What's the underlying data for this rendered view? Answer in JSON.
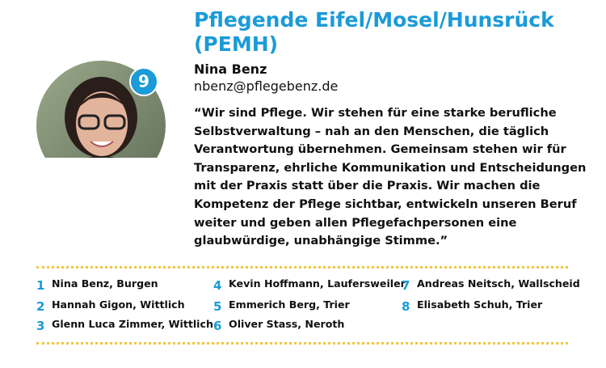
{
  "title_lines": [
    "Pflegende Eifel/Mosel/Hunsrück",
    "(PEMH)"
  ],
  "badge": 9,
  "name": "Nina Benz",
  "email": "nbenz@pflegebenz.de",
  "quote_lines": [
    "“Wir sind Pflege. Wir stehen für eine starke berufliche",
    "Selbstverwaltung – nah an den Menschen, die täglich",
    "Verantwortung übernehmen. Gemeinsam stehen wir für",
    "Transparenz, ehrliche Kommunikation und Entscheidungen",
    "mit der Praxis statt über die Praxis. Wir machen die",
    "Kompetenz der Pflege sichtbar, entwickeln unseren Beruf",
    "weiter und geben allen Pflegefachpersonen eine",
    "glaubwürdige, unabhängige Stimme.”"
  ],
  "list": [
    {
      "number": 1,
      "text": "Nina Benz, Burgen"
    },
    {
      "number": 2,
      "text": "Hannah Gigon, Wittlich"
    },
    {
      "number": 3,
      "text": "Glenn Luca Zimmer, Wittlich"
    },
    {
      "number": 4,
      "text": "Kevin Hoffmann, Laufersweiler"
    },
    {
      "number": 5,
      "text": "Emmerich Berg, Trier"
    },
    {
      "number": 6,
      "text": "Oliver Stass, Neroth"
    },
    {
      "number": 7,
      "text": "Andreas Neitsch, Wallscheid"
    },
    {
      "number": 8,
      "text": "Elisabeth Schuh, Trier"
    }
  ]
}
